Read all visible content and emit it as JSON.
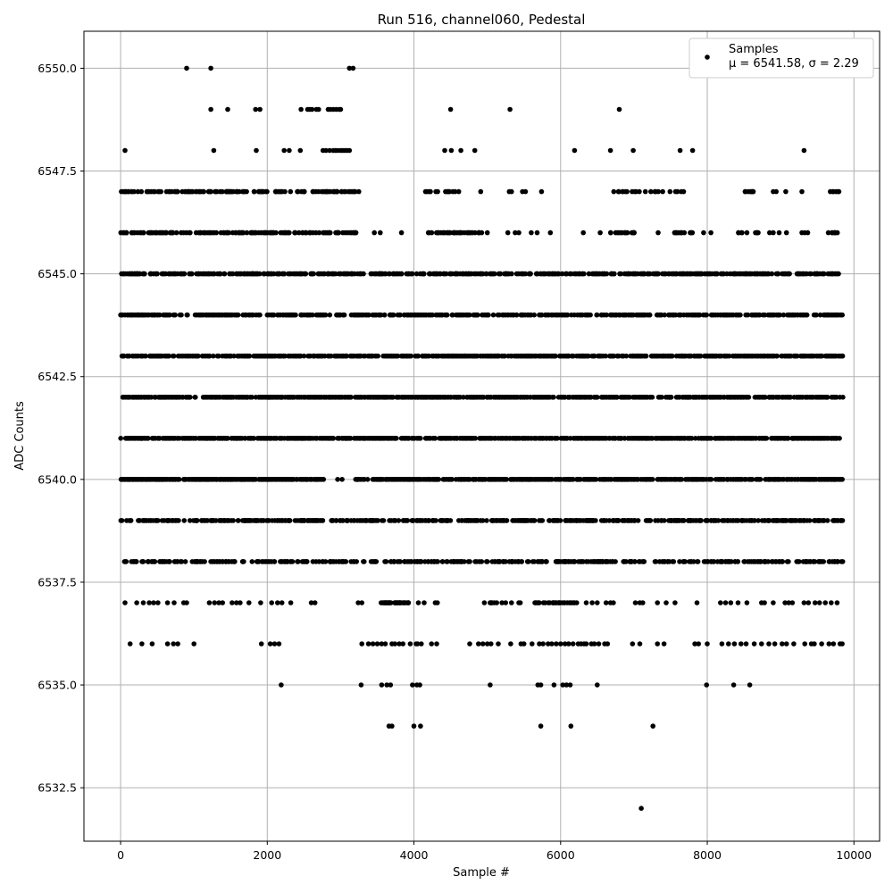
{
  "chart_data": {
    "type": "scatter",
    "title": "Run 516, channel060, Pedestal",
    "xlabel": "Sample #",
    "ylabel": "ADC Counts",
    "xlim": [
      -500,
      10350
    ],
    "ylim": [
      6531.2,
      6550.9
    ],
    "xticks": [
      0,
      2000,
      4000,
      6000,
      8000,
      10000
    ],
    "xtick_labels": [
      "0",
      "2000",
      "4000",
      "6000",
      "8000",
      "10000"
    ],
    "yticks": [
      6532.5,
      6535.0,
      6537.5,
      6540.0,
      6542.5,
      6545.0,
      6547.5,
      6550.0
    ],
    "ytick_labels": [
      "6532.5",
      "6535.0",
      "6537.5",
      "6540.0",
      "6542.5",
      "6545.0",
      "6547.5",
      "6550.0"
    ],
    "grid": true,
    "legend_position": "top-right",
    "series": [
      {
        "name": "Samples",
        "color": "#000000",
        "marker": "circle",
        "points": {
          "6550": [
            900,
            1230,
            3120,
            3170
          ],
          "6549": [
            1230,
            1460,
            1840,
            1900,
            2460,
            2550,
            2580,
            2610,
            2670,
            2700,
            2830,
            2860,
            2900,
            2940,
            2980,
            3000,
            4500,
            5310,
            6800
          ],
          "6548": [
            60,
            1270,
            1850,
            2230,
            2300,
            2450,
            2760,
            2800,
            2850,
            2900,
            2930,
            2960,
            3000,
            3030,
            3060,
            3090,
            3120,
            4420,
            4510,
            4640,
            4830,
            6190,
            6680,
            6990,
            7630,
            7800,
            9320
          ],
          "6547": [
            {
              "band": [
                0,
                3250
              ],
              "n": 130
            },
            {
              "band": [
                4150,
                4650
              ],
              "n": 14
            },
            4910,
            5300,
            5330,
            5480,
            5520,
            5740,
            {
              "band": [
                6700,
                7700
              ],
              "n": 22
            },
            {
              "band": [
                8500,
                8700
              ],
              "n": 8
            },
            8900,
            8940,
            9070,
            9290,
            {
              "band": [
                9670,
                9800
              ],
              "n": 6
            }
          ],
          "6546": [
            {
              "band": [
                0,
                3250
              ],
              "n": 160
            },
            3460,
            3540,
            3830,
            {
              "band": [
                4150,
                4950
              ],
              "n": 40
            },
            5000,
            5280,
            5380,
            5430,
            5600,
            5680,
            5860,
            6310,
            6540,
            {
              "band": [
                6650,
                7050
              ],
              "n": 18
            },
            7330,
            {
              "band": [
                7550,
                7800
              ],
              "n": 14
            },
            7950,
            8050,
            {
              "band": [
                8420,
                8700
              ],
              "n": 10
            },
            8850,
            8900,
            8980,
            9080,
            9290,
            9330,
            9370,
            {
              "band": [
                9650,
                9800
              ],
              "n": 8
            }
          ],
          "6545": [
            {
              "band": [
                0,
                9800
              ],
              "n": 560
            }
          ],
          "6544": [
            {
              "band": [
                0,
                9850
              ],
              "n": 560
            }
          ],
          "6543": [
            {
              "band": [
                0,
                9850
              ],
              "n": 700
            }
          ],
          "6542": [
            {
              "band": [
                0,
                9850
              ],
              "n": 760
            }
          ],
          "6541": [
            {
              "band": [
                0,
                9850
              ],
              "n": 780
            }
          ],
          "6540": [
            {
              "band": [
                0,
                2770
              ],
              "n": 320
            },
            2960,
            3020,
            {
              "band": [
                3200,
                9850
              ],
              "n": 500
            }
          ],
          "6539": [
            {
              "band": [
                0,
                9850
              ],
              "n": 520
            }
          ],
          "6538": [
            {
              "band": [
                50,
                9850
              ],
              "n": 420
            }
          ],
          "6537": [
            60,
            220,
            310,
            390,
            450,
            510,
            640,
            730,
            860,
            900,
            1210,
            1280,
            1340,
            1390,
            1520,
            1580,
            1630,
            1750,
            1910,
            2060,
            2140,
            2200,
            2320,
            2600,
            2650,
            3240,
            3290,
            {
              "band": [
                3550,
                3950
              ],
              "n": 40
            },
            4060,
            4140,
            4290,
            4320,
            4960,
            {
              "band": [
                5030,
                5150
              ],
              "n": 6
            },
            5200,
            5250,
            5330,
            5430,
            5450,
            {
              "band": [
                5600,
                6250
              ],
              "n": 30
            },
            6350,
            6430,
            6500,
            6620,
            6680,
            6720,
            7020,
            7080,
            7120,
            7320,
            7440,
            7560,
            7860,
            8180,
            8250,
            8320,
            8420,
            8540,
            8740,
            8780,
            8900,
            9060,
            9110,
            9160,
            9320,
            9380,
            9470,
            9530,
            9610,
            9690,
            9770
          ],
          "6536": [
            130,
            290,
            430,
            640,
            720,
            780,
            1000,
            1920,
            2040,
            2100,
            2160,
            3290,
            3380,
            3440,
            3500,
            3560,
            3610,
            3700,
            3740,
            3800,
            3850,
            3950,
            4030,
            4050,
            4100,
            4240,
            4310,
            4760,
            4880,
            4940,
            5000,
            5050,
            5150,
            5320,
            5460,
            5500,
            5610,
            5710,
            5760,
            5830,
            5880,
            5940,
            6000,
            6060,
            6110,
            6170,
            6240,
            6280,
            6320,
            6350,
            6420,
            6460,
            6520,
            6600,
            6640,
            6980,
            7080,
            7320,
            7410,
            7830,
            7880,
            8000,
            8200,
            8290,
            8370,
            8460,
            8530,
            8640,
            8740,
            8840,
            8920,
            9020,
            9080,
            9180,
            9330,
            9420,
            9460,
            9560,
            9660,
            9720,
            9810,
            9840
          ],
          "6535": [
            2190,
            3280,
            3560,
            3630,
            3680,
            3980,
            4040,
            4080,
            5040,
            5690,
            5730,
            5910,
            6030,
            6080,
            6130,
            6500,
            7990,
            8360,
            8580
          ],
          "6534": [
            3660,
            3700,
            4000,
            4090,
            5730,
            6140,
            7260
          ],
          "6532": [
            7100
          ]
        }
      }
    ],
    "legend": {
      "entries": [
        "Samples"
      ],
      "stat_line": "μ = 6541.58, σ = 2.29"
    }
  }
}
